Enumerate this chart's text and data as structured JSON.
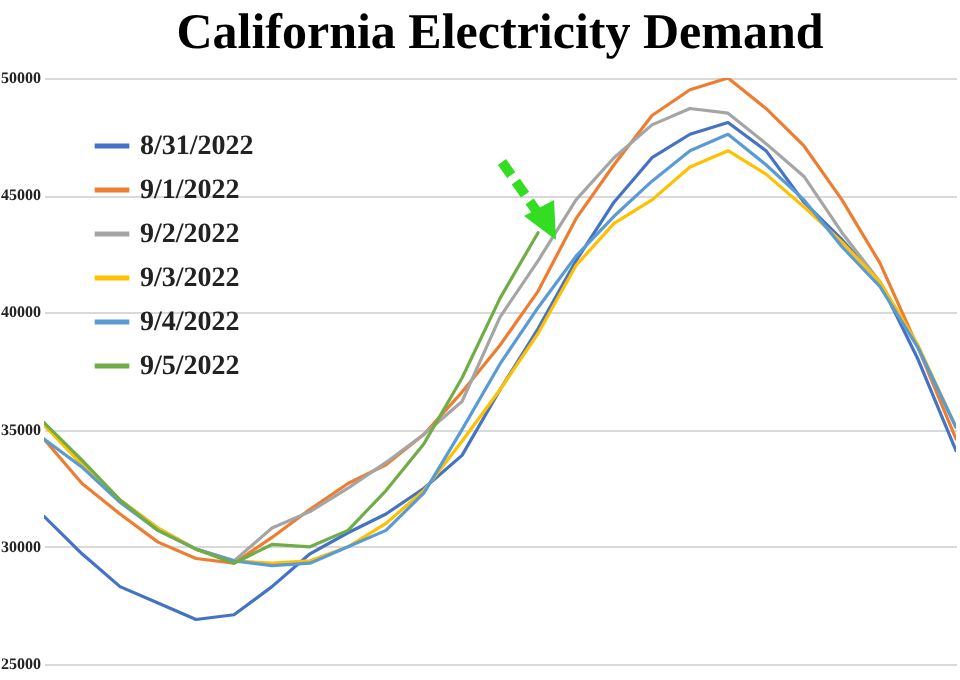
{
  "chart_data": {
    "type": "line",
    "title": "California Electricity Demand",
    "categories": [
      null,
      null,
      null,
      null,
      null,
      null,
      null,
      null,
      null,
      null,
      null,
      null,
      null,
      null,
      null,
      null,
      null,
      null,
      null,
      null,
      null,
      null,
      null,
      null,
      null
    ],
    "ylim": [
      25000,
      50000
    ],
    "yticks": [
      25000,
      30000,
      35000,
      40000,
      45000,
      50000
    ],
    "grid": "y",
    "legend": "top left",
    "tick_labels": "y",
    "marker": "none",
    "line_style": "solid",
    "series": [
      {
        "name": "8/31/2022",
        "color": "#4472c4",
        "values": [
          31300,
          29700,
          28300,
          27600,
          26900,
          27100,
          28300,
          29700,
          30600,
          31400,
          32500,
          33900,
          36700,
          39300,
          42200,
          44700,
          46600,
          47600,
          48100,
          46900,
          44700,
          43100,
          41300,
          38000,
          34100
        ]
      },
      {
        "name": "9/1/2022",
        "color": "#ed7d31",
        "values": [
          34600,
          32700,
          31400,
          30200,
          29500,
          29300,
          30400,
          31600,
          32700,
          33500,
          34800,
          36600,
          38600,
          40900,
          44000,
          46300,
          48400,
          49500,
          50000,
          48700,
          47100,
          44800,
          42100,
          38500,
          34600
        ]
      },
      {
        "name": "9/2/2022",
        "color": "#a5a5a5",
        "values": [
          35200,
          33600,
          32000,
          30800,
          29900,
          29400,
          30800,
          31500,
          32500,
          33600,
          34800,
          36200,
          39800,
          42200,
          44800,
          46600,
          48000,
          48700,
          48500,
          47200,
          45800,
          43400,
          41300,
          38500,
          35100
        ]
      },
      {
        "name": "9/3/2022",
        "color": "#ffc000",
        "values": [
          35200,
          33500,
          32000,
          30800,
          29900,
          29400,
          29300,
          29400,
          30000,
          31000,
          32400,
          34500,
          36700,
          39100,
          42000,
          43800,
          44800,
          46200,
          46900,
          45900,
          44500,
          43000,
          41300,
          38600,
          35100
        ]
      },
      {
        "name": "9/4/2022",
        "color": "#5b9bd5",
        "values": [
          34600,
          33400,
          31900,
          30700,
          29900,
          29400,
          29200,
          29300,
          30000,
          30700,
          32300,
          35000,
          37800,
          40200,
          42400,
          44100,
          45600,
          46900,
          47600,
          46300,
          44800,
          42800,
          41100,
          38500,
          35100
        ]
      },
      {
        "name": "9/5/2022",
        "color": "#70ad47",
        "values": [
          35300,
          33700,
          32000,
          30700,
          29900,
          29300,
          30100,
          30000,
          30700,
          32400,
          34400,
          37200,
          40600,
          43400,
          null,
          null,
          null,
          null,
          null,
          null,
          null,
          null,
          null,
          null,
          null
        ]
      }
    ]
  }
}
